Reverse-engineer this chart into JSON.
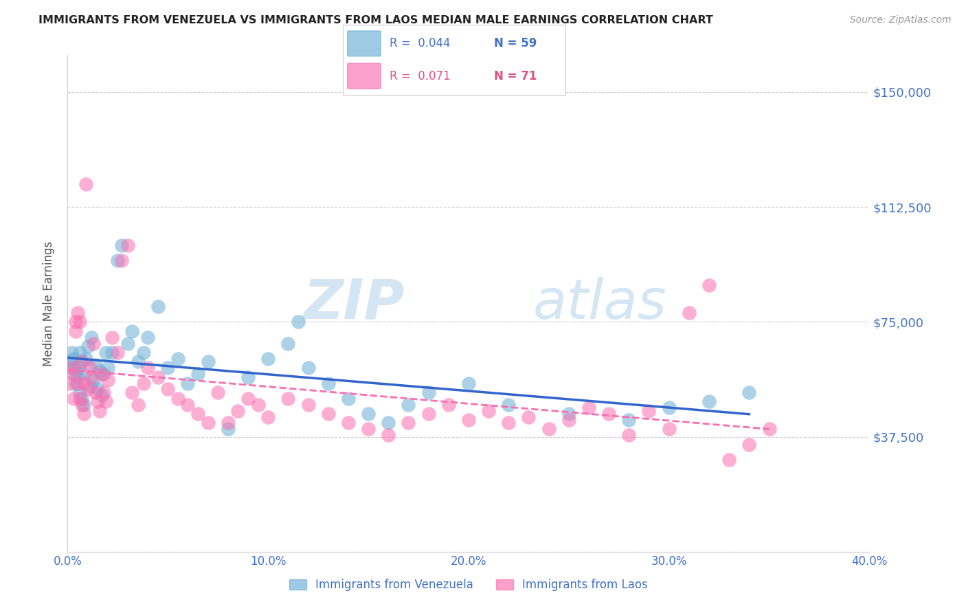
{
  "title": "IMMIGRANTS FROM VENEZUELA VS IMMIGRANTS FROM LAOS MEDIAN MALE EARNINGS CORRELATION CHART",
  "source": "Source: ZipAtlas.com",
  "ylabel": "Median Male Earnings",
  "yticks": [
    0,
    37500,
    75000,
    112500,
    150000
  ],
  "ytick_labels": [
    "",
    "$37,500",
    "$75,000",
    "$112,500",
    "$150,000"
  ],
  "xlim": [
    0.0,
    0.4
  ],
  "ylim": [
    0,
    162000
  ],
  "legend_label1": "Immigrants from Venezuela",
  "legend_label2": "Immigrants from Laos",
  "color_venezuela": "#6baed6",
  "color_laos": "#fb6eb0",
  "color_axis_labels": "#4472c4",
  "venezuela_x": [
    0.001,
    0.002,
    0.003,
    0.003,
    0.004,
    0.004,
    0.005,
    0.005,
    0.006,
    0.006,
    0.007,
    0.007,
    0.008,
    0.008,
    0.009,
    0.01,
    0.011,
    0.012,
    0.013,
    0.014,
    0.015,
    0.016,
    0.017,
    0.018,
    0.019,
    0.02,
    0.022,
    0.025,
    0.027,
    0.03,
    0.032,
    0.035,
    0.038,
    0.04,
    0.045,
    0.05,
    0.055,
    0.06,
    0.065,
    0.07,
    0.08,
    0.09,
    0.1,
    0.11,
    0.115,
    0.12,
    0.13,
    0.14,
    0.15,
    0.16,
    0.17,
    0.18,
    0.2,
    0.22,
    0.25,
    0.28,
    0.3,
    0.32,
    0.34
  ],
  "venezuela_y": [
    62000,
    65000,
    60000,
    63000,
    58000,
    55000,
    57000,
    60000,
    52000,
    65000,
    50000,
    62000,
    58000,
    48000,
    63000,
    67000,
    54000,
    70000,
    56000,
    61000,
    53000,
    59000,
    51000,
    58000,
    65000,
    60000,
    65000,
    95000,
    100000,
    68000,
    72000,
    62000,
    65000,
    70000,
    80000,
    60000,
    63000,
    55000,
    58000,
    62000,
    40000,
    57000,
    63000,
    68000,
    75000,
    60000,
    55000,
    50000,
    45000,
    42000,
    48000,
    52000,
    55000,
    48000,
    45000,
    43000,
    47000,
    49000,
    52000
  ],
  "laos_x": [
    0.001,
    0.002,
    0.003,
    0.003,
    0.004,
    0.004,
    0.005,
    0.005,
    0.006,
    0.006,
    0.007,
    0.007,
    0.008,
    0.008,
    0.009,
    0.01,
    0.011,
    0.012,
    0.013,
    0.014,
    0.015,
    0.016,
    0.017,
    0.018,
    0.019,
    0.02,
    0.022,
    0.025,
    0.027,
    0.03,
    0.032,
    0.035,
    0.038,
    0.04,
    0.045,
    0.05,
    0.055,
    0.06,
    0.065,
    0.07,
    0.075,
    0.08,
    0.085,
    0.09,
    0.095,
    0.1,
    0.11,
    0.12,
    0.13,
    0.14,
    0.15,
    0.16,
    0.17,
    0.18,
    0.19,
    0.2,
    0.21,
    0.22,
    0.23,
    0.24,
    0.25,
    0.26,
    0.27,
    0.28,
    0.29,
    0.3,
    0.31,
    0.32,
    0.33,
    0.34,
    0.35
  ],
  "laos_y": [
    55000,
    60000,
    58000,
    50000,
    75000,
    72000,
    78000,
    55000,
    50000,
    75000,
    48000,
    62000,
    55000,
    45000,
    120000,
    53000,
    60000,
    57000,
    68000,
    52000,
    49000,
    46000,
    58000,
    52000,
    49000,
    56000,
    70000,
    65000,
    95000,
    100000,
    52000,
    48000,
    55000,
    60000,
    57000,
    53000,
    50000,
    48000,
    45000,
    42000,
    52000,
    42000,
    46000,
    50000,
    48000,
    44000,
    50000,
    48000,
    45000,
    42000,
    40000,
    38000,
    42000,
    45000,
    48000,
    43000,
    46000,
    42000,
    44000,
    40000,
    43000,
    47000,
    45000,
    38000,
    46000,
    40000,
    78000,
    87000,
    30000,
    35000,
    40000
  ]
}
